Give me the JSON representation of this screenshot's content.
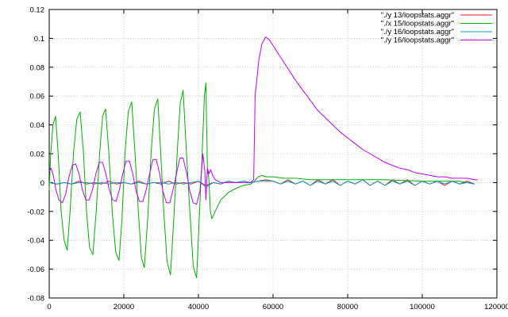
{
  "chart_data": {
    "type": "line",
    "title": "",
    "xlabel": "",
    "ylabel": "",
    "xlim": [
      0,
      120000
    ],
    "ylim": [
      -0.08,
      0.12
    ],
    "grid": true,
    "legend_position": "top-right",
    "x_ticks": [
      {
        "value": 0,
        "label": "0"
      },
      {
        "value": 20000,
        "label": "20000"
      },
      {
        "value": 40000,
        "label": "40000"
      },
      {
        "value": 60000,
        "label": "60000"
      },
      {
        "value": 80000,
        "label": "80000"
      },
      {
        "value": 100000,
        "label": "100000"
      },
      {
        "value": 120000,
        "label": "120000"
      }
    ],
    "y_ticks": [
      {
        "value": -0.08,
        "label": "-0.08"
      },
      {
        "value": -0.06,
        "label": "-0.06"
      },
      {
        "value": -0.04,
        "label": "-0.04"
      },
      {
        "value": -0.02,
        "label": "-0.02"
      },
      {
        "value": 0,
        "label": "0"
      },
      {
        "value": 0.02,
        "label": "0.02"
      },
      {
        "value": 0.04,
        "label": "0.04"
      },
      {
        "value": 0.06,
        "label": "0.06"
      },
      {
        "value": 0.08,
        "label": "0.08"
      },
      {
        "value": 0.1,
        "label": "0.1"
      },
      {
        "value": 0.12,
        "label": "0.12"
      }
    ],
    "series": [
      {
        "name": "\"./y    13/loopstats.aggr\"",
        "color": "#e41a1c",
        "x": [
          0,
          2000,
          4000,
          6000,
          8000,
          10000,
          12000,
          14000,
          16000,
          18000,
          20000,
          22000,
          24000,
          26000,
          28000,
          30000,
          32000,
          34000,
          36000,
          38000,
          40000,
          42000,
          44000,
          46000,
          48000,
          50000,
          52000,
          54000,
          56000,
          58000,
          60000,
          62000,
          64000,
          66000,
          68000,
          70000,
          72000,
          74000,
          76000,
          78000,
          80000,
          82000,
          84000,
          86000,
          88000,
          90000,
          92000,
          94000,
          96000,
          98000,
          100000,
          102000,
          104000,
          106000,
          108000,
          110000,
          112000,
          114000
        ],
        "y": [
          0.0,
          -0.001,
          0.0,
          -0.001,
          0.001,
          -0.001,
          0.0,
          -0.001,
          0.001,
          -0.001,
          0.0,
          -0.001,
          0.001,
          -0.001,
          0.0,
          -0.001,
          0.001,
          -0.001,
          0.0,
          -0.001,
          0.001,
          -0.002,
          0.0,
          -0.001,
          0.001,
          0.0,
          0.001,
          0.0,
          0.001,
          0.002,
          0.001,
          -0.001,
          0.002,
          -0.001,
          0.001,
          -0.002,
          0.002,
          -0.001,
          0.002,
          -0.002,
          0.001,
          -0.001,
          0.002,
          -0.002,
          0.001,
          -0.002,
          0.002,
          -0.001,
          0.002,
          -0.002,
          0.001,
          -0.001,
          0.001,
          -0.002,
          0.001,
          -0.001,
          0.001,
          -0.001
        ]
      },
      {
        "name": "\"./x    15/loopstats.aggr\"",
        "color": "#00b000",
        "x": [
          0,
          400,
          1000,
          1700,
          2400,
          3200,
          4000,
          4800,
          5600,
          6500,
          7400,
          8300,
          9200,
          10000,
          10800,
          11700,
          12600,
          13500,
          14300,
          15100,
          16000,
          16900,
          17800,
          18700,
          19500,
          20300,
          21200,
          22100,
          23000,
          23900,
          24700,
          25500,
          26400,
          27300,
          28200,
          29100,
          29900,
          30700,
          31600,
          32500,
          33400,
          34300,
          35100,
          35900,
          36800,
          37700,
          38600,
          39500,
          40300,
          41000,
          41600,
          42000,
          42400,
          42800,
          43200,
          43600,
          44500,
          46000,
          48000,
          50000,
          52000,
          54000,
          55000,
          56000,
          57000,
          58000,
          60000,
          63000,
          66000,
          70000,
          75000,
          80000,
          90000,
          100000,
          105000,
          108000,
          110000,
          112000,
          114000
        ],
        "y": [
          -0.005,
          0.02,
          0.04,
          0.046,
          0.02,
          -0.02,
          -0.04,
          -0.047,
          -0.02,
          0.02,
          0.044,
          0.049,
          0.02,
          -0.02,
          -0.045,
          -0.05,
          -0.02,
          0.02,
          0.046,
          0.051,
          0.02,
          -0.02,
          -0.048,
          -0.054,
          -0.025,
          0.02,
          0.049,
          0.056,
          0.02,
          -0.02,
          -0.052,
          -0.059,
          -0.025,
          0.02,
          0.051,
          0.058,
          0.02,
          -0.02,
          -0.055,
          -0.064,
          -0.025,
          0.02,
          0.055,
          0.064,
          0.02,
          -0.02,
          -0.058,
          -0.066,
          -0.02,
          0.02,
          0.06,
          0.069,
          0.01,
          0.002,
          -0.02,
          -0.025,
          -0.02,
          -0.012,
          -0.007,
          -0.004,
          -0.002,
          -0.001,
          0.001,
          0.004,
          0.005,
          0.004,
          0.004,
          0.003,
          0.003,
          0.002,
          0.002,
          0.002,
          0.002,
          0.001,
          0.001,
          0.001,
          0.001,
          0.0,
          -0.001
        ]
      },
      {
        "name": "\"./y    16/loopstats.aggr\"",
        "color": "#00a0c8",
        "x": [
          0,
          2000,
          4000,
          6000,
          8000,
          10000,
          12000,
          14000,
          16000,
          18000,
          20000,
          22000,
          24000,
          26000,
          28000,
          30000,
          32000,
          34000,
          36000,
          38000,
          40000,
          42000,
          44000,
          46000,
          48000,
          50000,
          52000,
          54000,
          56000,
          58000,
          60000,
          62000,
          64000,
          66000,
          68000,
          70000,
          72000,
          74000,
          76000,
          78000,
          80000,
          82000,
          84000,
          86000,
          88000,
          90000,
          92000,
          94000,
          96000,
          98000,
          100000,
          102000,
          104000,
          106000,
          108000,
          110000,
          112000,
          114000
        ],
        "y": [
          0.0,
          -0.001,
          0.0,
          -0.001,
          0.0,
          0.0,
          -0.001,
          0.0,
          -0.001,
          0.0,
          0.0,
          -0.001,
          0.0,
          -0.001,
          0.0,
          0.0,
          -0.001,
          0.0,
          -0.001,
          0.0,
          0.001,
          -0.003,
          0.0,
          -0.001,
          0.001,
          0.0,
          0.001,
          0.0,
          0.001,
          0.001,
          0.001,
          -0.001,
          0.001,
          -0.001,
          0.001,
          -0.002,
          0.001,
          -0.001,
          0.001,
          -0.002,
          0.001,
          -0.001,
          0.002,
          -0.002,
          0.001,
          -0.002,
          0.001,
          -0.001,
          0.001,
          -0.002,
          0.001,
          -0.001,
          0.001,
          -0.001,
          0.001,
          -0.001,
          0.0,
          -0.001
        ]
      },
      {
        "name": "\"./y    16/loopstats.aggr\"",
        "color": "#c000ff",
        "x": [
          0,
          500,
          1100,
          1800,
          2600,
          3500,
          4400,
          5300,
          6200,
          7100,
          8000,
          8900,
          9800,
          10700,
          11600,
          12500,
          13400,
          14300,
          15200,
          16100,
          17000,
          17900,
          18800,
          19700,
          20600,
          21500,
          22400,
          23300,
          24200,
          25100,
          26000,
          26900,
          27800,
          28700,
          29600,
          30500,
          31400,
          32300,
          33200,
          34100,
          35000,
          35900,
          36800,
          37700,
          38600,
          39500,
          40400,
          41200,
          41700,
          42000,
          42400,
          42800,
          43300,
          43800,
          44500,
          46000,
          48000,
          50000,
          52000,
          54000,
          54800,
          55200,
          55600,
          56200,
          57000,
          58000,
          59000,
          60000,
          62000,
          64000,
          66000,
          68000,
          70000,
          72000,
          74000,
          76000,
          78000,
          80000,
          82000,
          84000,
          86000,
          88000,
          90000,
          92000,
          94000,
          96000,
          98000,
          100000,
          102000,
          104000,
          106000,
          108000,
          110000,
          112000,
          114000,
          114800
        ],
        "y": [
          0.008,
          0.01,
          0.005,
          -0.005,
          -0.012,
          -0.014,
          -0.008,
          0.004,
          0.012,
          0.013,
          0.006,
          -0.005,
          -0.012,
          -0.012,
          -0.005,
          0.006,
          0.014,
          0.014,
          0.006,
          -0.005,
          -0.012,
          -0.013,
          -0.005,
          0.006,
          0.015,
          0.015,
          0.006,
          -0.006,
          -0.013,
          -0.013,
          -0.005,
          0.006,
          0.016,
          0.016,
          0.006,
          -0.006,
          -0.014,
          -0.014,
          -0.005,
          0.006,
          0.017,
          0.017,
          0.007,
          -0.006,
          -0.014,
          -0.015,
          -0.006,
          0.02,
          0.008,
          -0.012,
          0.01,
          0.006,
          0.009,
          0.005,
          0.002,
          0.0,
          0.0,
          0.0,
          0.0,
          0.0,
          0.002,
          0.06,
          0.07,
          0.085,
          0.096,
          0.101,
          0.099,
          0.095,
          0.087,
          0.079,
          0.071,
          0.064,
          0.057,
          0.05,
          0.045,
          0.04,
          0.035,
          0.031,
          0.027,
          0.023,
          0.02,
          0.017,
          0.014,
          0.012,
          0.01,
          0.009,
          0.007,
          0.006,
          0.005,
          0.004,
          0.004,
          0.003,
          0.003,
          0.003,
          0.002,
          0.002
        ]
      }
    ]
  }
}
